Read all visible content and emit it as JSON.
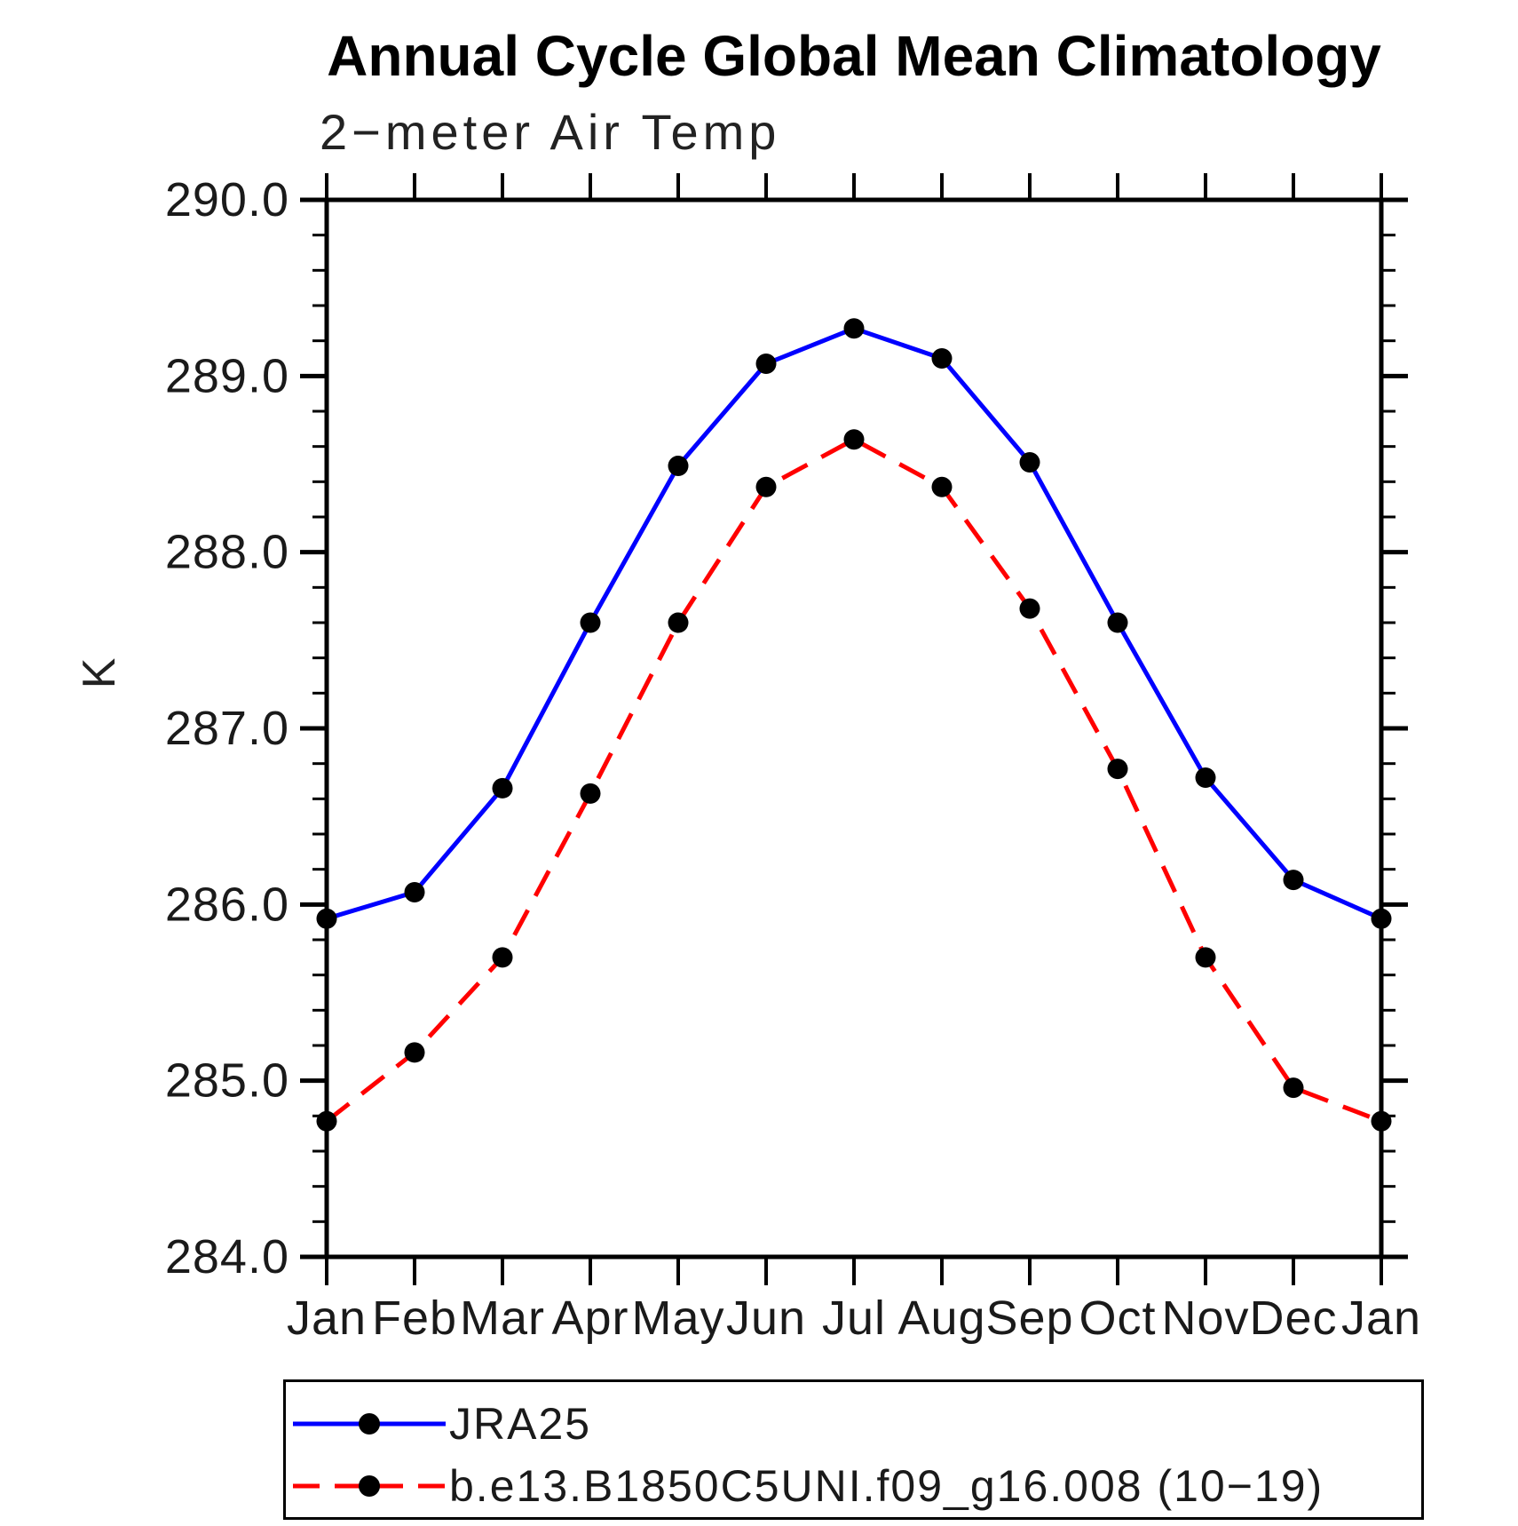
{
  "chart_data": {
    "type": "line",
    "title": "Annual Cycle Global Mean Climatology",
    "subtitle": "2−meter Air Temp",
    "ylabel": "K",
    "x_categories": [
      "Jan",
      "Feb",
      "Mar",
      "Apr",
      "May",
      "Jun",
      "Jul",
      "Aug",
      "Sep",
      "Oct",
      "Nov",
      "Dec",
      "Jan"
    ],
    "y_tick_labels": [
      "290.0",
      "289.0",
      "288.0",
      "287.0",
      "286.0",
      "285.0",
      "284.0"
    ],
    "ylim": [
      284.0,
      290.0
    ],
    "y_major_step": 1.0,
    "y_minor_step": 0.2,
    "grid": false,
    "legend_position": "bottom-left",
    "series": [
      {
        "name": "JRA25",
        "color": "#0000ff",
        "line_style": "solid",
        "marker": "filled-circle",
        "marker_color": "#000000",
        "values": [
          285.92,
          286.07,
          286.66,
          287.6,
          288.49,
          289.07,
          289.27,
          289.1,
          288.51,
          287.6,
          286.72,
          286.14,
          285.92
        ]
      },
      {
        "name": "b.e13.B1850C5UNI.f09_g16.008 (10−19)",
        "color": "#ff0000",
        "line_style": "dashed",
        "marker": "filled-circle",
        "marker_color": "#000000",
        "values": [
          284.77,
          285.16,
          285.7,
          286.63,
          287.6,
          288.37,
          288.64,
          288.37,
          287.68,
          286.77,
          285.7,
          284.96,
          284.77
        ]
      }
    ]
  }
}
